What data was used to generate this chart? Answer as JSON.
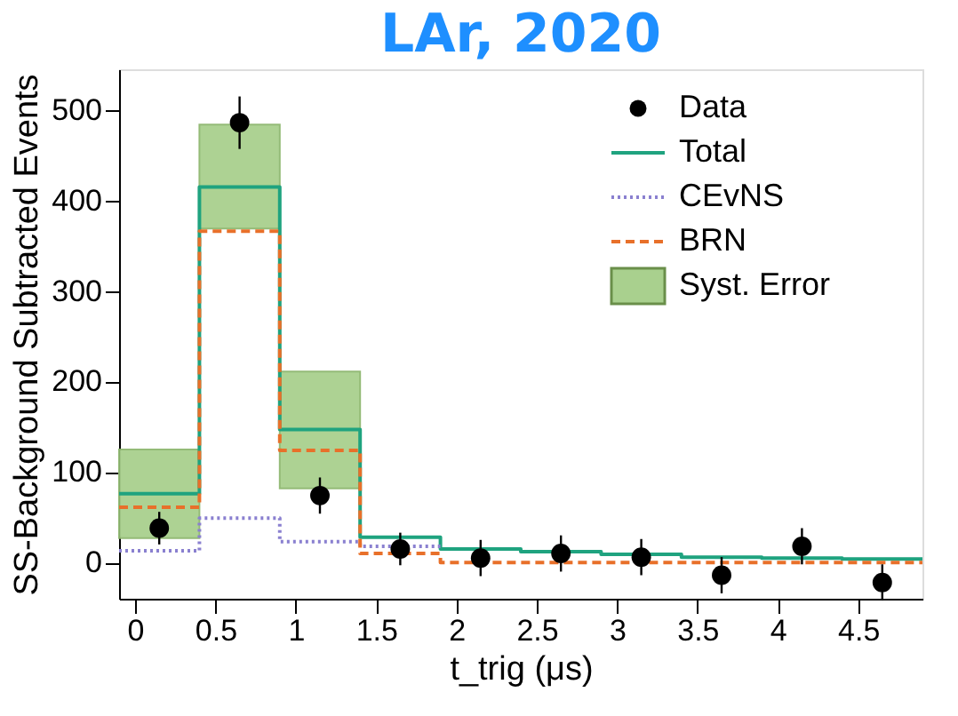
{
  "chart_data": {
    "type": "step",
    "title": "LAr, 2020",
    "xlabel": "t_trig (μs)",
    "ylabel": "SS-Background Subtracted Events",
    "xlim": [
      -0.1,
      4.9
    ],
    "ylim": [
      -40,
      545
    ],
    "xticks": [
      0,
      0.5,
      1,
      1.5,
      2,
      2.5,
      3,
      3.5,
      4,
      4.5
    ],
    "yticks": [
      0,
      100,
      200,
      300,
      400,
      500
    ],
    "grid": false,
    "legend": "top right",
    "series": [
      {
        "name": "Data",
        "type": "scatter",
        "color": "#000000",
        "marker": "circle",
        "x": [
          0.15,
          0.65,
          1.15,
          1.65,
          2.15,
          2.65,
          3.15,
          3.65,
          4.15,
          4.65
        ],
        "values": [
          38,
          486,
          74,
          15,
          5,
          10,
          6,
          -14,
          18,
          -22
        ],
        "errors": [
          18,
          29,
          20,
          18,
          20,
          20,
          20,
          20,
          20,
          20
        ]
      },
      {
        "name": "Total",
        "color": "#1fa37f",
        "line_style": "solid",
        "x": [
          -0.1,
          0.4,
          0.9,
          1.4,
          1.9,
          2.4,
          2.9,
          3.4,
          3.9,
          4.4,
          4.9
        ],
        "values": [
          76,
          415,
          147,
          28,
          15,
          12,
          9,
          6,
          5,
          4,
          4
        ]
      },
      {
        "name": "CEvNS",
        "color": "#8a80d0",
        "line_style": "dotted",
        "x": [
          -0.1,
          0.4,
          0.9,
          1.4,
          1.9
        ],
        "values": [
          13,
          49,
          23,
          18,
          18
        ]
      },
      {
        "name": "BRN",
        "color": "#e8702a",
        "line_style": "dashed",
        "x": [
          -0.1,
          0.4,
          0.9,
          1.4,
          1.9,
          2.4,
          2.9,
          3.4,
          3.9,
          4.4,
          4.9
        ],
        "values": [
          61,
          366,
          124,
          10,
          0,
          0,
          0,
          0,
          0,
          0,
          0
        ]
      },
      {
        "name": "Syst. Error",
        "type": "bar",
        "color": "#a9d08e",
        "x": [
          0.15,
          0.65,
          1.15
        ],
        "base": [
          27,
          369,
          82
        ],
        "values": [
          98,
          115,
          129
        ]
      }
    ]
  }
}
